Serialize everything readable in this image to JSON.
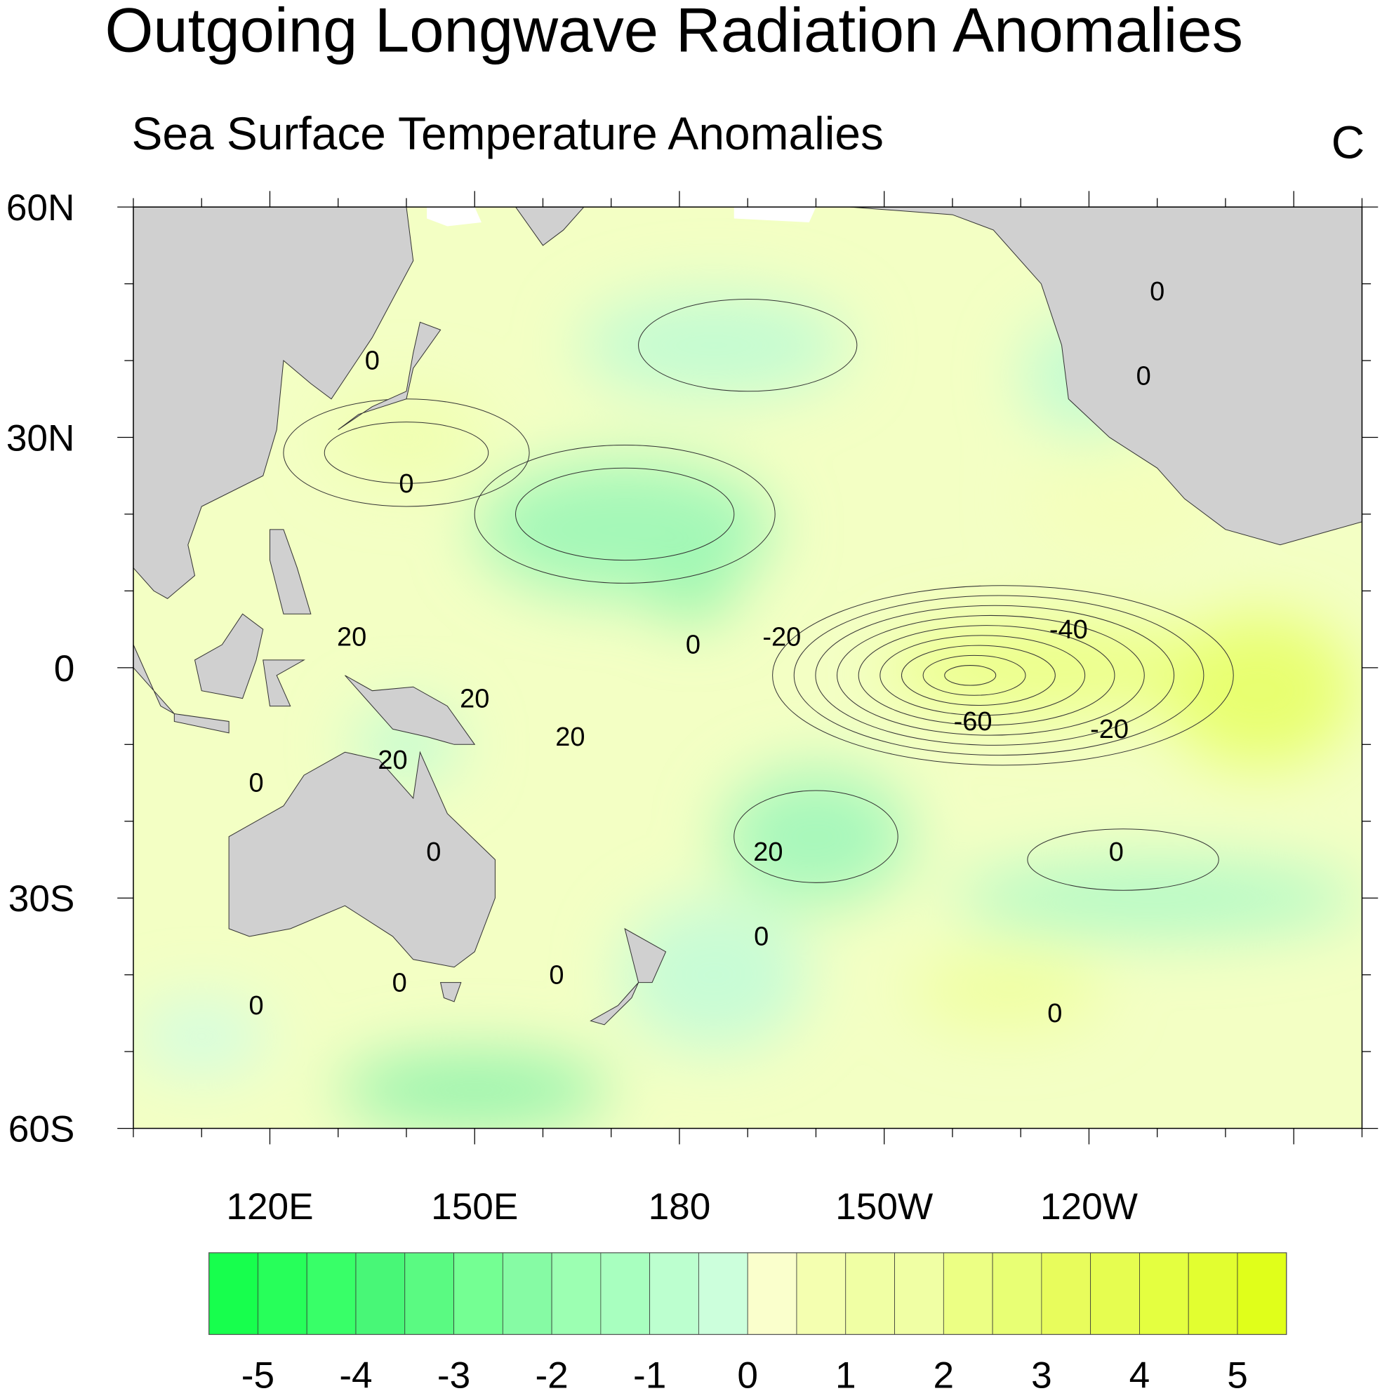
{
  "title": "Outgoing Longwave Radiation Anomalies",
  "subtitle": "Sea Surface Temperature Anomalies",
  "panel_label": "C",
  "map": {
    "lon_range": [
      100,
      280
    ],
    "lat_range": [
      -60,
      60
    ],
    "lat_ticks": [
      {
        "lat": 60,
        "label": "60N"
      },
      {
        "lat": 30,
        "label": "30N"
      },
      {
        "lat": 0,
        "label": "0"
      },
      {
        "lat": -30,
        "label": "30S"
      },
      {
        "lat": -60,
        "label": "60S"
      }
    ],
    "lon_ticks": [
      {
        "lon": 120,
        "label": "120E"
      },
      {
        "lon": 150,
        "label": "150E"
      },
      {
        "lon": 180,
        "label": "180"
      },
      {
        "lon": 210,
        "label": "150W"
      },
      {
        "lon": 240,
        "label": "120W"
      }
    ],
    "land_color": "#d0d0d0",
    "ocean_base_color": "#f3ffc4",
    "contour_labels": [
      {
        "lon": 135,
        "lat": 40,
        "text": "0"
      },
      {
        "lon": 140,
        "lat": 24,
        "text": "0"
      },
      {
        "lon": 250,
        "lat": 49,
        "text": "0"
      },
      {
        "lon": 248,
        "lat": 38,
        "text": "0"
      },
      {
        "lon": 132,
        "lat": 4,
        "text": "20"
      },
      {
        "lon": 150,
        "lat": -4,
        "text": "20"
      },
      {
        "lon": 164,
        "lat": -9,
        "text": "20"
      },
      {
        "lon": 138,
        "lat": -12,
        "text": "20"
      },
      {
        "lon": 118,
        "lat": -15,
        "text": "0"
      },
      {
        "lon": 182,
        "lat": 3,
        "text": "0"
      },
      {
        "lon": 195,
        "lat": 4,
        "text": "-20"
      },
      {
        "lon": 237,
        "lat": 5,
        "text": "-40"
      },
      {
        "lon": 223,
        "lat": -7,
        "text": "-60"
      },
      {
        "lon": 243,
        "lat": -8,
        "text": "-20"
      },
      {
        "lon": 144,
        "lat": -24,
        "text": "0"
      },
      {
        "lon": 193,
        "lat": -24,
        "text": "20"
      },
      {
        "lon": 244,
        "lat": -24,
        "text": "0"
      },
      {
        "lon": 192,
        "lat": -35,
        "text": "0"
      },
      {
        "lon": 139,
        "lat": -41,
        "text": "0"
      },
      {
        "lon": 162,
        "lat": -40,
        "text": "0"
      },
      {
        "lon": 118,
        "lat": -44,
        "text": "0"
      },
      {
        "lon": 235,
        "lat": -45,
        "text": "0"
      }
    ]
  },
  "colorbar": {
    "labels": [
      "-5",
      "-4",
      "-3",
      "-2",
      "-1",
      "0",
      "1",
      "2",
      "3",
      "4",
      "5"
    ],
    "colors": [
      "#17ff4d",
      "#27ff5a",
      "#38ff68",
      "#48f777",
      "#5afa82",
      "#74ff93",
      "#86fba4",
      "#9cffb2",
      "#a8ffbf",
      "#bcffcf",
      "#ccffdc",
      "#faffcc",
      "#f4ffb0",
      "#f0ffa4",
      "#f0ffa4",
      "#ecff84",
      "#e8ff74",
      "#e8fc5c",
      "#e6fd50",
      "#e4ff40",
      "#e2fe30",
      "#e0ff1a"
    ]
  }
}
